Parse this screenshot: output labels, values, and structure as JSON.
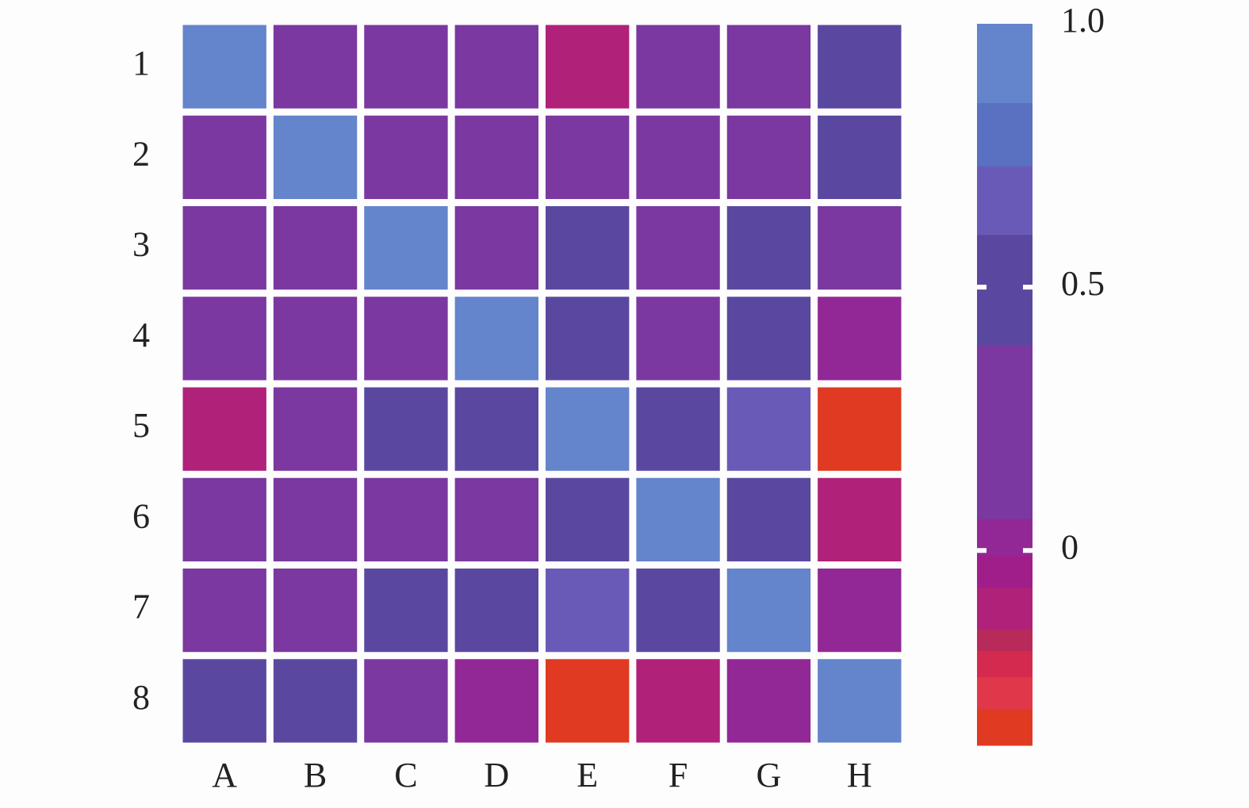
{
  "chart_data": {
    "type": "heatmap",
    "x_categories": [
      "A",
      "B",
      "C",
      "D",
      "E",
      "F",
      "G",
      "H"
    ],
    "y_categories": [
      "1",
      "2",
      "3",
      "4",
      "5",
      "6",
      "7",
      "8"
    ],
    "values": [
      [
        1.0,
        0.2,
        0.2,
        0.2,
        -0.1,
        0.2,
        0.2,
        0.45
      ],
      [
        0.3,
        1.0,
        0.3,
        0.3,
        0.25,
        0.25,
        0.2,
        0.45
      ],
      [
        0.25,
        0.25,
        1.0,
        0.25,
        0.45,
        0.25,
        0.45,
        0.2
      ],
      [
        0.25,
        0.25,
        0.2,
        1.0,
        0.45,
        0.3,
        0.45,
        0.02
      ],
      [
        -0.1,
        0.2,
        0.45,
        0.45,
        1.0,
        0.45,
        0.65,
        -0.35
      ],
      [
        0.25,
        0.25,
        0.2,
        0.25,
        0.45,
        1.0,
        0.45,
        -0.1
      ],
      [
        0.25,
        0.25,
        0.45,
        0.45,
        0.65,
        0.45,
        1.0,
        0.02
      ],
      [
        0.45,
        0.45,
        0.25,
        0.02,
        -0.35,
        -0.1,
        0.02,
        1.0
      ]
    ],
    "colorbar": {
      "bounds": [
        -0.37,
        -0.3,
        -0.24,
        -0.19,
        -0.15,
        -0.07,
        -0.01,
        0.06,
        0.39,
        0.6,
        0.73,
        0.85,
        1.0
      ],
      "colors": [
        "#e03a22",
        "#e0384a",
        "#d42a50",
        "#b82a5a",
        "#b0217a",
        "#a01e8a",
        "#922896",
        "#7a38a0",
        "#5a48a0",
        "#6a5ab8",
        "#5a70c0",
        "#6484cc"
      ],
      "ticks": [
        0,
        0.5,
        {
          "value": 1,
          "label": "1.0"
        }
      ]
    }
  }
}
